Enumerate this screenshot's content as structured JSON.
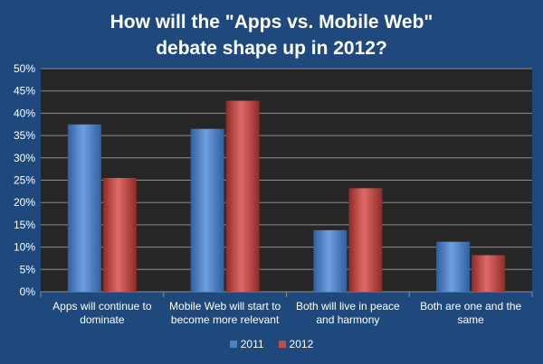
{
  "chart_data": {
    "type": "bar",
    "title_lines": [
      "How will the \"Apps vs. Mobile Web\"",
      "debate shape up in 2012?"
    ],
    "categories": [
      [
        "Apps will continue to",
        "dominate"
      ],
      [
        "Mobile Web will start to",
        "become more relevant"
      ],
      [
        "Both will live in peace",
        "and harmony"
      ],
      [
        "Both are one and the",
        "same"
      ]
    ],
    "series": [
      {
        "name": "2011",
        "color": "#4f81bd",
        "values": [
          37.5,
          36.5,
          13.8,
          11.2
        ]
      },
      {
        "name": "2012",
        "color": "#c0504d",
        "values": [
          25.5,
          42.8,
          23.2,
          8.2
        ]
      }
    ],
    "ylim": [
      0,
      50
    ],
    "yticks": [
      "0%",
      "5%",
      "10%",
      "15%",
      "20%",
      "25%",
      "30%",
      "35%",
      "40%",
      "45%",
      "50%"
    ],
    "grid": true,
    "legend_position": "bottom",
    "plot_background": "#262626"
  }
}
